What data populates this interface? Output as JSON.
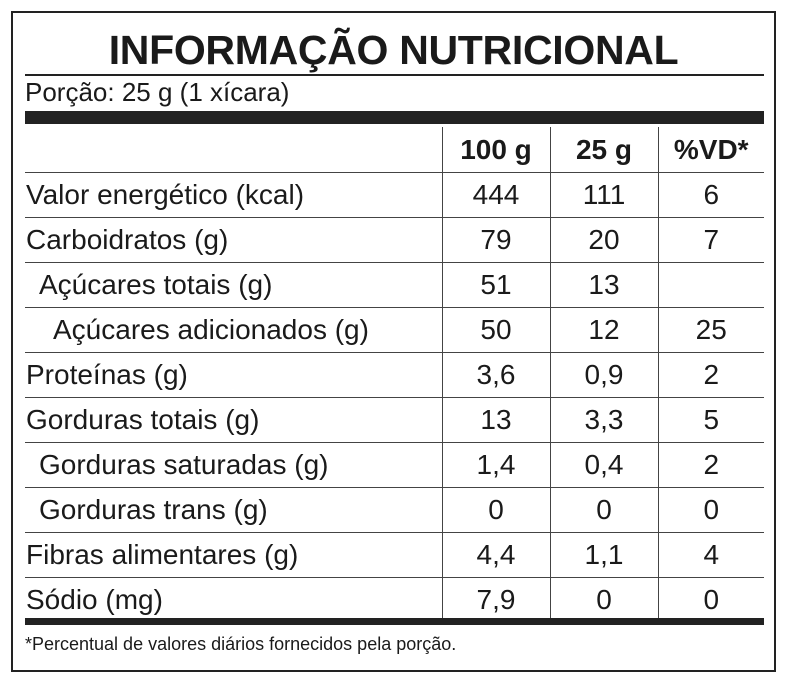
{
  "title": "INFORMAÇÃO NUTRICIONAL",
  "serving": "Porção: 25 g (1 xícara)",
  "columns": [
    "100 g",
    "25 g",
    "%VD*"
  ],
  "rows": [
    {
      "label": "Valor energético (kcal)",
      "v100": "444",
      "vportion": "111",
      "vd": "6"
    },
    {
      "label": "Carboidratos (g)",
      "v100": "79",
      "vportion": "20",
      "vd": "7"
    },
    {
      "label": "Açúcares totais (g)",
      "v100": "51",
      "vportion": "13",
      "vd": ""
    },
    {
      "label": "Açúcares adicionados (g)",
      "v100": "50",
      "vportion": "12",
      "vd": "25"
    },
    {
      "label": "Proteínas (g)",
      "v100": "3,6",
      "vportion": "0,9",
      "vd": "2"
    },
    {
      "label": "Gorduras totais (g)",
      "v100": "13",
      "vportion": "3,3",
      "vd": "5"
    },
    {
      "label": "Gorduras saturadas (g)",
      "v100": "1,4",
      "vportion": "0,4",
      "vd": "2"
    },
    {
      "label": "Gorduras trans (g)",
      "v100": "0",
      "vportion": "0",
      "vd": "0"
    },
    {
      "label": "Fibras alimentares (g)",
      "v100": "4,4",
      "vportion": "1,1",
      "vd": "4"
    },
    {
      "label": "Sódio (mg)",
      "v100": "7,9",
      "vportion": "0",
      "vd": "0"
    }
  ],
  "footnote": "*Percentual de valores diários fornecidos pela porção."
}
